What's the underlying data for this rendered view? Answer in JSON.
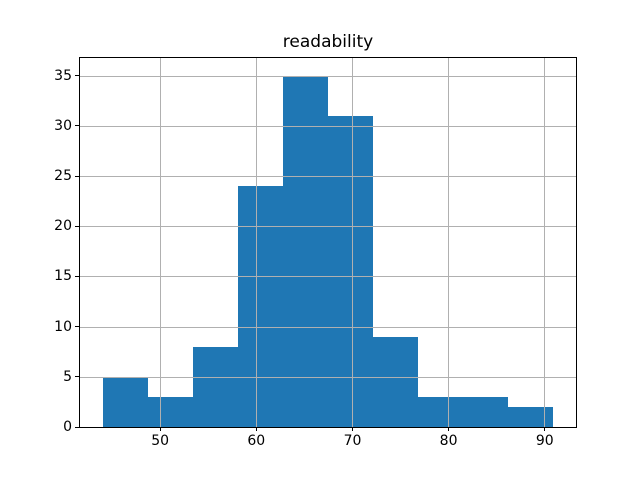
{
  "chart_data": {
    "type": "bar",
    "subtype": "histogram",
    "title": "readability",
    "xlabel": "",
    "ylabel": "",
    "bin_edges": [
      44.0,
      48.7,
      53.4,
      58.1,
      62.8,
      67.5,
      72.1,
      76.8,
      81.5,
      86.2,
      90.9
    ],
    "counts": [
      5,
      3,
      8,
      24,
      35,
      31,
      9,
      3,
      3,
      2
    ],
    "xticks": [
      50,
      60,
      70,
      80,
      90
    ],
    "yticks": [
      0,
      5,
      10,
      15,
      20,
      25,
      30,
      35
    ],
    "xlim": [
      41.66,
      93.25
    ],
    "ylim": [
      0,
      36.75
    ],
    "grid": true,
    "grid_on_top_of_bars": true,
    "legend": null,
    "colors": {
      "bar": "#1f77b4",
      "grid": "#b0b0b0",
      "axis": "#000000",
      "text": "#000000",
      "background": "#ffffff"
    }
  }
}
